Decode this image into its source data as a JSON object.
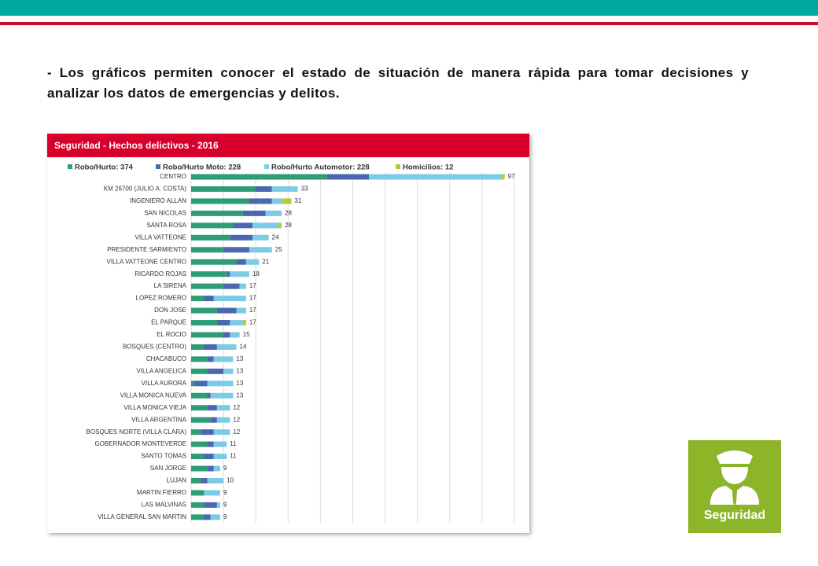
{
  "text": "- Los gráficos permiten conocer el estado de situación de manera rápida para tomar decisiones y analizar los datos de emergencias y delitos.",
  "badge": "Seguridad",
  "chart_data": {
    "type": "stacked-bar-horizontal",
    "title": "Seguridad - Hechos delictivos - 2016",
    "categories": [
      "CENTRO",
      "KM 26700 (JULIO A. COSTA)",
      "INGENIERO ALLAN",
      "SAN NICOLAS",
      "SANTA ROSA",
      "VILLA VATTEONE",
      "PRESIDENTE SARMIENTO",
      "VILLA VATTEONE CENTRO",
      "RICARDO ROJAS",
      "LA SIRENA",
      "LOPEZ ROMERO",
      "DON JOSE",
      "EL PARQUE",
      "EL ROCIO",
      "BOSQUES (CENTRO)",
      "CHACABUCO",
      "VILLA ANGELICA",
      "VILLA AURORA",
      "VILLA MONICA NUEVA",
      "VILLA MONICA VIEJA",
      "VILLA ARGENTINA",
      "BOSQUES NORTE (VILLA CLARA)",
      "GOBERNADOR MONTEVERDE",
      "SANTO TOMAS",
      "SAN JORGE",
      "LUJAN",
      "MARTIN FIERRO",
      "LAS MALVINAS",
      "VILLA GENERAL SAN MARTIN"
    ],
    "series": [
      {
        "name": "Robo/Hurto: 374",
        "color": "#2e9c74",
        "values": [
          42,
          20,
          18,
          16,
          13,
          12,
          10,
          14,
          11,
          10,
          4,
          8,
          8,
          10,
          4,
          5,
          5,
          1,
          5,
          5,
          6,
          3,
          5,
          4,
          5,
          3,
          4,
          4,
          4
        ]
      },
      {
        "name": "Robo/Hurto Moto: 228",
        "color": "#4a67b0",
        "values": [
          13,
          5,
          7,
          7,
          6,
          7,
          8,
          3,
          1,
          5,
          3,
          6,
          4,
          2,
          4,
          2,
          5,
          4,
          1,
          3,
          2,
          4,
          2,
          3,
          2,
          2,
          0,
          4,
          2
        ]
      },
      {
        "name": "Robo/Hurto Automotor: 228",
        "color": "#7ccbe6",
        "values": [
          41,
          8,
          3,
          5,
          8,
          5,
          7,
          4,
          6,
          2,
          10,
          3,
          4,
          3,
          6,
          6,
          3,
          8,
          7,
          4,
          4,
          5,
          4,
          4,
          2,
          5,
          5,
          1,
          3
        ]
      },
      {
        "name": "Homicilios: 12",
        "color": "#b5c93a",
        "values": [
          1,
          0,
          3,
          0,
          1,
          0,
          0,
          0,
          0,
          0,
          0,
          0,
          1,
          0,
          0,
          0,
          0,
          0,
          0,
          0,
          0,
          0,
          0,
          0,
          0,
          0,
          0,
          0,
          0
        ]
      }
    ],
    "totals": [
      97,
      33,
      31,
      28,
      28,
      24,
      25,
      21,
      18,
      17,
      17,
      17,
      17,
      15,
      14,
      13,
      13,
      13,
      13,
      12,
      12,
      12,
      11,
      11,
      9,
      10,
      9,
      9,
      9
    ],
    "xlim": [
      0,
      100
    ],
    "xticks": [
      0,
      10,
      20,
      30,
      40,
      50,
      60,
      70,
      80,
      90,
      100
    ],
    "tick_labels": false,
    "grid": true
  }
}
